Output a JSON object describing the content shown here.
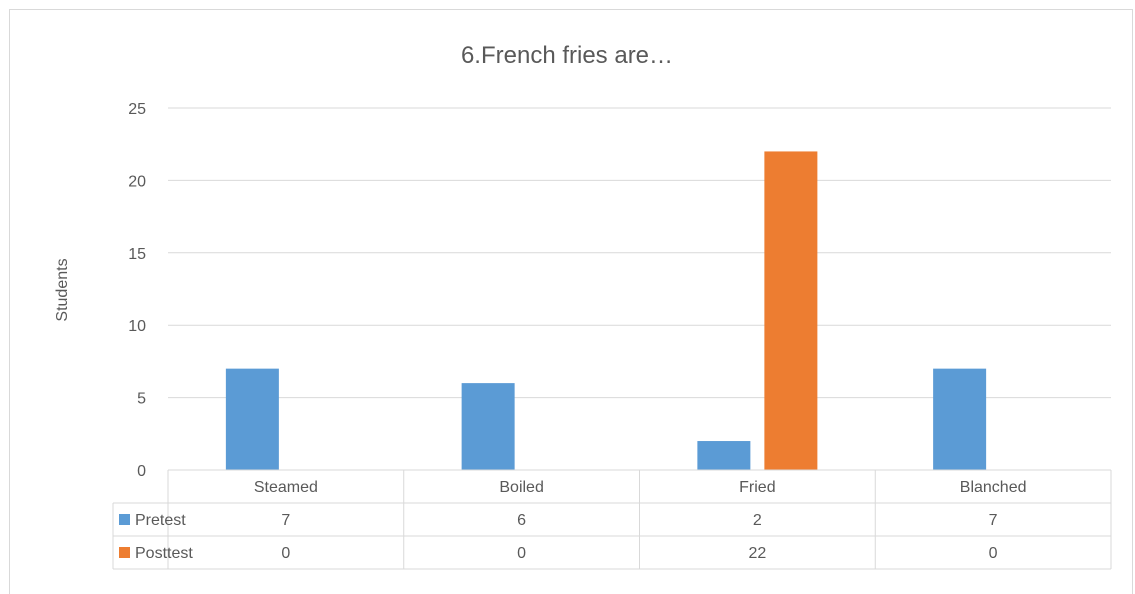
{
  "chart_data": {
    "type": "bar",
    "title": "6.French fries are…",
    "xlabel": "",
    "ylabel": "Students",
    "categories": [
      "Steamed",
      "Boiled",
      "Fried",
      "Blanched"
    ],
    "series": [
      {
        "name": "Pretest",
        "values": [
          7,
          6,
          2,
          7
        ],
        "color": "#5b9bd5"
      },
      {
        "name": "Posttest",
        "values": [
          0,
          0,
          22,
          0
        ],
        "color": "#ed7d31"
      }
    ],
    "ylim": [
      0,
      25
    ],
    "yticks": [
      0,
      5,
      10,
      15,
      20,
      25
    ],
    "grid": true,
    "legend": "data-table"
  }
}
